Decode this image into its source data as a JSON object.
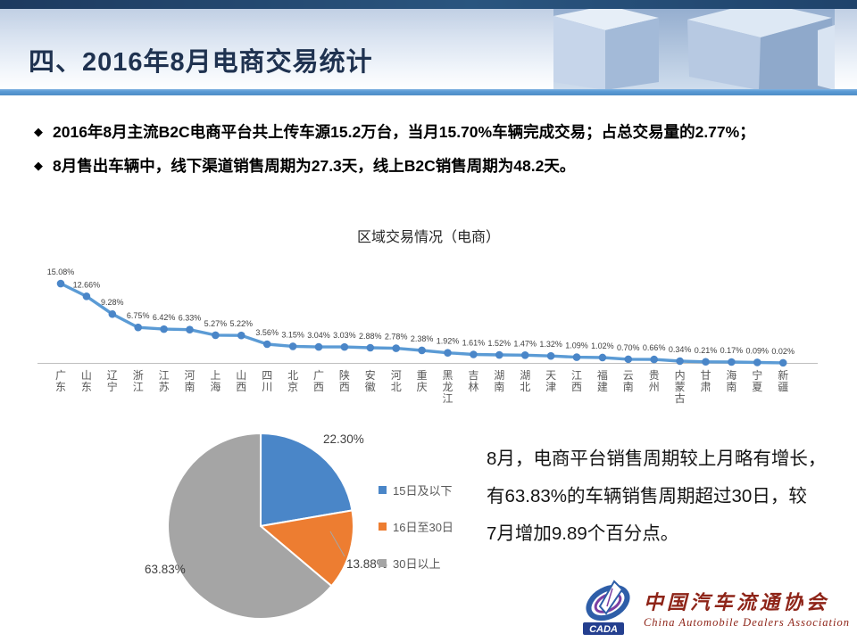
{
  "header": {
    "title": "四、2016年8月电商交易统计"
  },
  "bullets": [
    "2016年8月主流B2C电商平台共上传车源15.2万台，当月15.70%车辆完成交易；占总交易量的2.77%；",
    "8月售出车辆中，线下渠道销售周期为27.3天，线上B2C销售周期为48.2天。"
  ],
  "commentary_lines": [
    "8月，电商平台销售周期较上月略有增长，",
    "有63.83%的车辆销售周期超过30日，较",
    "7月增加9.89个百分点。"
  ],
  "logo": {
    "emblem_text": "CADA",
    "name_cn": "中国汽车流通协会",
    "name_en": "China Automobile Dealers Association"
  },
  "colors": {
    "accent_blue": "#5b9bd5",
    "marker_blue": "#4a86c8",
    "axis_gray": "#bfbfbf",
    "label_gray": "#595959",
    "value_label": "#404040",
    "logo_red": "#8e2418"
  },
  "chart_data": [
    {
      "type": "line",
      "title": "区域交易情况（电商）",
      "categories": [
        "广东",
        "山东",
        "辽宁",
        "浙江",
        "江苏",
        "河南",
        "上海",
        "山西",
        "四川",
        "北京",
        "广西",
        "陕西",
        "安徽",
        "河北",
        "重庆",
        "黑龙江",
        "吉林",
        "湖南",
        "湖北",
        "天津",
        "江西",
        "福建",
        "云南",
        "贵州",
        "内蒙古",
        "甘肃",
        "海南",
        "宁夏",
        "新疆"
      ],
      "values": [
        15.08,
        12.66,
        9.28,
        6.75,
        6.42,
        6.33,
        5.27,
        5.22,
        3.56,
        3.15,
        3.04,
        3.03,
        2.88,
        2.78,
        2.38,
        1.92,
        1.61,
        1.52,
        1.47,
        1.32,
        1.09,
        1.02,
        0.7,
        0.66,
        0.34,
        0.21,
        0.17,
        0.09,
        0.02
      ],
      "unit": "%",
      "series_color": "#5b9bd5",
      "marker_color": "#4a86c8",
      "data_labels": true,
      "grid": false,
      "ylim": [
        0,
        16
      ],
      "legend_position": "none"
    },
    {
      "type": "pie",
      "labels": [
        "15日及以下",
        "16日至30日",
        "30日以上"
      ],
      "values": [
        22.3,
        13.88,
        63.83
      ],
      "data_labels": [
        "22.30%",
        "13.88%",
        "63.83%"
      ],
      "colors": [
        "#4a86c8",
        "#ed7d31",
        "#a5a5a5"
      ],
      "legend_position": "right"
    }
  ]
}
